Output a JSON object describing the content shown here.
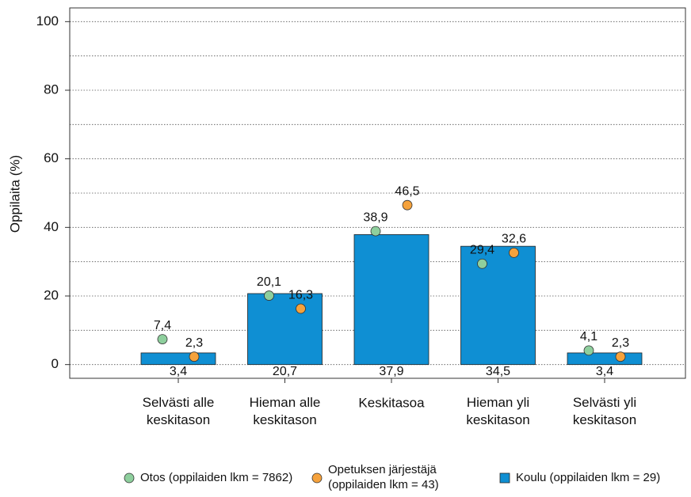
{
  "chart_data": {
    "type": "bar",
    "ylabel": "Oppilaita (%)",
    "categories": [
      "Selvästi alle\nkeskitason",
      "Hieman alle\nkeskitason",
      "Keskitasoa",
      "Hieman yli\nkeskitason",
      "Selvästi yli\nkeskitason"
    ],
    "ylim": [
      -4,
      104
    ],
    "yticks": [
      0,
      20,
      40,
      60,
      80,
      100
    ],
    "minor_grid": [
      10,
      30,
      50,
      70,
      90
    ],
    "grid": true,
    "legend": "bottom",
    "series": [
      {
        "name": "Otos (oppilaiden lkm = 7862)",
        "type": "scatter",
        "color": "#8ecf9d",
        "values": [
          7.4,
          20.1,
          38.9,
          29.4,
          4.1
        ],
        "value_labels": [
          "7,4",
          "20,1",
          "38,9",
          "29,4",
          "4,1"
        ]
      },
      {
        "name": "Opetuksen järjestäjä\n(oppilaiden lkm = 43)",
        "type": "scatter",
        "color": "#f5a23c",
        "values": [
          2.3,
          16.3,
          46.5,
          32.6,
          2.3
        ],
        "value_labels": [
          "2,3",
          "16,3",
          "46,5",
          "32,6",
          "2,3"
        ]
      },
      {
        "name": "Koulu (oppilaiden lkm = 29)",
        "type": "bar",
        "color": "#0f8fd3",
        "values": [
          3.4,
          20.7,
          37.9,
          34.5,
          3.4
        ],
        "value_labels": [
          "3,4",
          "20,7",
          "37,9",
          "34,5",
          "3,4"
        ]
      }
    ]
  }
}
